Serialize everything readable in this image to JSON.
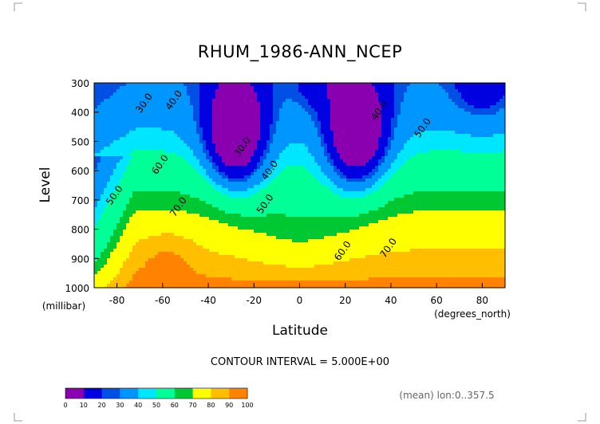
{
  "chart_data": {
    "type": "heatmap",
    "subtype": "filled-contour",
    "title": "RHUM_1986-ANN_NCEP",
    "xlabel": "Latitude",
    "ylabel": "Level",
    "x_unit": "(degrees_north)",
    "y_unit": "(millibar)",
    "xlim": [
      -90,
      90
    ],
    "ylim": [
      1000,
      300
    ],
    "x_ticks": [
      "-80",
      "-60",
      "-40",
      "-20",
      "0",
      "20",
      "40",
      "60",
      "80"
    ],
    "x_tick_values": [
      -80,
      -60,
      -40,
      -20,
      0,
      20,
      40,
      60,
      80
    ],
    "y_ticks": [
      "300",
      "400",
      "500",
      "600",
      "700",
      "800",
      "900",
      "1000"
    ],
    "y_tick_values": [
      300,
      400,
      500,
      600,
      700,
      800,
      900,
      1000
    ],
    "contour_interval_text": "CONTOUR INTERVAL = 5.000E+00",
    "footnote": "(mean) lon:0..357.5",
    "contour_labels": [
      {
        "text": "30.0",
        "lat": -67,
        "lev": 375
      },
      {
        "text": "40.0",
        "lat": -54,
        "lev": 365
      },
      {
        "text": "30.0",
        "lat": -24,
        "lev": 525
      },
      {
        "text": "40.0",
        "lat": -12,
        "lev": 605
      },
      {
        "text": "40.0",
        "lat": 36,
        "lev": 400
      },
      {
        "text": "50.0",
        "lat": 55,
        "lev": 460
      },
      {
        "text": "60.0",
        "lat": -60,
        "lev": 585
      },
      {
        "text": "50.0",
        "lat": -80,
        "lev": 690
      },
      {
        "text": "70.0",
        "lat": -52,
        "lev": 730
      },
      {
        "text": "50.0",
        "lat": -14,
        "lev": 720
      },
      {
        "text": "60.0",
        "lat": 20,
        "lev": 880
      },
      {
        "text": "70.0",
        "lat": 40,
        "lev": 870
      }
    ],
    "colorbar": {
      "levels": [
        "0",
        "10",
        "20",
        "30",
        "40",
        "50",
        "60",
        "70",
        "80",
        "90",
        "100"
      ],
      "colors": [
        "#8a00b0",
        "#0000e0",
        "#0050e6",
        "#0096ff",
        "#00e6ff",
        "#00ff96",
        "#00c832",
        "#ffff00",
        "#ffbe00",
        "#ff8200",
        "#ff3c00",
        "#e60000"
      ]
    }
  }
}
